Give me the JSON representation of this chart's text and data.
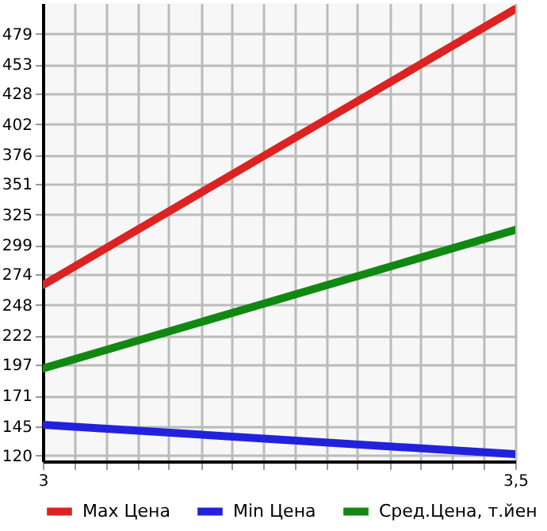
{
  "chart_data": {
    "type": "line",
    "x": [
      3,
      3.5
    ],
    "series": [
      {
        "name": "Max Цена",
        "color": "#dd2222",
        "values": [
          265,
          500
        ]
      },
      {
        "name": "Min Цена",
        "color": "#2222dd",
        "values": [
          146,
          121
        ]
      },
      {
        "name": "Сред.Цена, т.йен",
        "color": "#118811",
        "values": [
          194,
          312
        ]
      }
    ],
    "xlim": [
      3,
      3.5
    ],
    "xticks": [
      {
        "value": 3,
        "label": "3"
      },
      {
        "value": 3.033,
        "label": null
      },
      {
        "value": 3.067,
        "label": null
      },
      {
        "value": 3.1,
        "label": null
      },
      {
        "value": 3.133,
        "label": null
      },
      {
        "value": 3.167,
        "label": null
      },
      {
        "value": 3.2,
        "label": null
      },
      {
        "value": 3.233,
        "label": null
      },
      {
        "value": 3.267,
        "label": null
      },
      {
        "value": 3.3,
        "label": null
      },
      {
        "value": 3.333,
        "label": null
      },
      {
        "value": 3.367,
        "label": null
      },
      {
        "value": 3.4,
        "label": null
      },
      {
        "value": 3.433,
        "label": null
      },
      {
        "value": 3.467,
        "label": null
      },
      {
        "value": 3.5,
        "label": "3,5"
      }
    ],
    "ylim": [
      115,
      505
    ],
    "yticks": [
      120,
      145,
      171,
      197,
      222,
      248,
      274,
      299,
      325,
      351,
      376,
      402,
      428,
      453,
      479
    ],
    "grid": true,
    "legend": "bottom",
    "marker": "none",
    "line_style": "solid"
  }
}
